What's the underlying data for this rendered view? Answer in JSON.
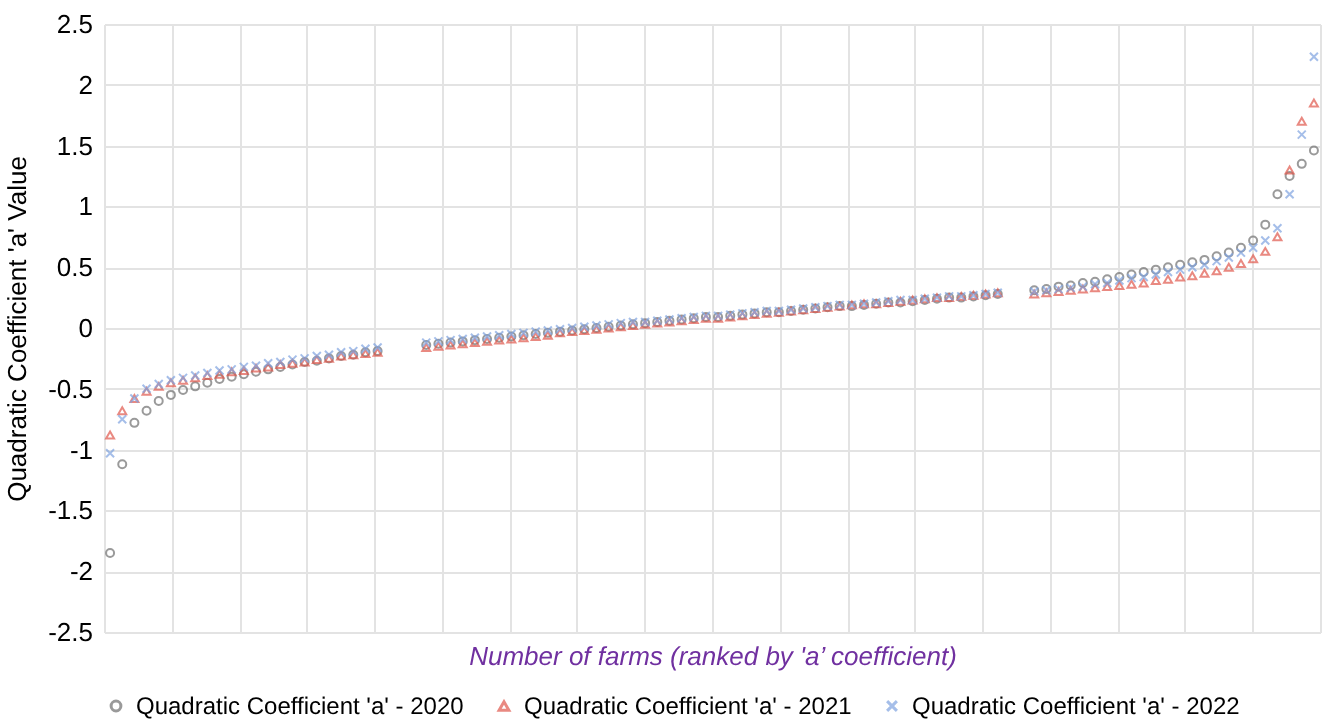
{
  "chart_data": {
    "type": "scatter",
    "xlabel": "Number of farms (ranked by 'a’ coefficient)",
    "ylabel": "Quadratic Coefficient 'a' Value",
    "categories": [
      null,
      null,
      null,
      null,
      null,
      null,
      null,
      null,
      null,
      null,
      null,
      null,
      null,
      null,
      null,
      null,
      null,
      null,
      null,
      null,
      null,
      null,
      null,
      null,
      null,
      null,
      null,
      null,
      null,
      null,
      null,
      null,
      null,
      null,
      null,
      null,
      null,
      null,
      null,
      null,
      null,
      null,
      null,
      null,
      null,
      null,
      null,
      null,
      null,
      null,
      null,
      null,
      null,
      null,
      null,
      null,
      null,
      null,
      null,
      null,
      null,
      null,
      null,
      null,
      null,
      null,
      null,
      null,
      null,
      null,
      null,
      null,
      null,
      null,
      null,
      null,
      null,
      null,
      null,
      null,
      null,
      null,
      null,
      null,
      null,
      null,
      null,
      null,
      null,
      null,
      null,
      null,
      null,
      null,
      null,
      null,
      null,
      null,
      null,
      null
    ],
    "series": [
      {
        "name": "Quadratic Coefficient 'a' - 2020",
        "color": "#707070",
        "marker": "circle",
        "values": [
          -1.85,
          -1.12,
          -0.78,
          -0.68,
          -0.6,
          -0.55,
          -0.51,
          -0.48,
          -0.45,
          -0.42,
          -0.4,
          -0.38,
          -0.36,
          -0.34,
          -0.32,
          -0.3,
          -0.28,
          -0.27,
          -0.25,
          -0.23,
          -0.22,
          -0.2,
          -0.19,
          null,
          null,
          null,
          -0.14,
          -0.13,
          -0.12,
          -0.11,
          -0.1,
          -0.09,
          -0.08,
          -0.07,
          -0.06,
          -0.05,
          -0.04,
          -0.03,
          -0.02,
          -0.01,
          0,
          0.01,
          0.02,
          0.03,
          0.04,
          0.05,
          0.06,
          0.07,
          0.08,
          0.09,
          0.09,
          0.1,
          0.11,
          0.12,
          0.13,
          0.13,
          0.14,
          0.15,
          0.16,
          0.17,
          0.18,
          0.18,
          0.19,
          0.2,
          0.21,
          0.21,
          0.22,
          0.23,
          0.24,
          0.25,
          0.25,
          0.26,
          0.27,
          0.28,
          null,
          null,
          0.31,
          0.32,
          0.34,
          0.35,
          0.37,
          0.38,
          0.4,
          0.42,
          0.44,
          0.46,
          0.48,
          0.5,
          0.52,
          0.54,
          0.56,
          0.59,
          0.62,
          0.66,
          0.72,
          0.85,
          1.1,
          1.25,
          1.35,
          1.46
        ]
      },
      {
        "name": "Quadratic Coefficient 'a' - 2021",
        "color": "#e0584c",
        "marker": "triangle",
        "values": [
          -0.88,
          -0.68,
          -0.58,
          -0.52,
          -0.48,
          -0.45,
          -0.43,
          -0.41,
          -0.39,
          -0.38,
          -0.36,
          -0.35,
          -0.33,
          -0.32,
          -0.3,
          -0.29,
          -0.28,
          -0.26,
          -0.25,
          -0.23,
          -0.22,
          -0.21,
          -0.2,
          null,
          null,
          null,
          -0.16,
          -0.15,
          -0.14,
          -0.13,
          -0.12,
          -0.11,
          -0.1,
          -0.09,
          -0.08,
          -0.07,
          -0.06,
          -0.04,
          -0.03,
          -0.02,
          -0.01,
          0,
          0.01,
          0.02,
          0.03,
          0.04,
          0.05,
          0.06,
          0.07,
          0.08,
          0.08,
          0.09,
          0.1,
          0.11,
          0.12,
          0.13,
          0.14,
          0.15,
          0.16,
          0.17,
          0.18,
          0.19,
          0.2,
          0.2,
          0.21,
          0.22,
          0.23,
          0.24,
          0.25,
          0.25,
          0.26,
          0.27,
          0.28,
          0.29,
          null,
          null,
          0.28,
          0.29,
          0.3,
          0.31,
          0.32,
          0.33,
          0.34,
          0.35,
          0.36,
          0.37,
          0.39,
          0.4,
          0.42,
          0.43,
          0.45,
          0.47,
          0.5,
          0.53,
          0.57,
          0.63,
          0.75,
          1.3,
          1.7,
          1.85
        ]
      },
      {
        "name": "Quadratic Coefficient 'a' - 2022",
        "color": "#7fa3e0",
        "marker": "cross",
        "values": [
          -1.03,
          -0.75,
          -0.58,
          -0.5,
          -0.46,
          -0.43,
          -0.41,
          -0.39,
          -0.37,
          -0.35,
          -0.34,
          -0.32,
          -0.31,
          -0.29,
          -0.28,
          -0.26,
          -0.25,
          -0.23,
          -0.22,
          -0.2,
          -0.19,
          -0.17,
          -0.16,
          null,
          null,
          null,
          -0.12,
          -0.11,
          -0.1,
          -0.09,
          -0.08,
          -0.07,
          -0.06,
          -0.05,
          -0.04,
          -0.03,
          -0.02,
          -0.01,
          0,
          0.01,
          0.02,
          0.03,
          0.04,
          0.05,
          0.05,
          0.06,
          0.07,
          0.08,
          0.09,
          0.1,
          0.1,
          0.11,
          0.12,
          0.13,
          0.14,
          0.14,
          0.15,
          0.16,
          0.17,
          0.18,
          0.19,
          0.19,
          0.2,
          0.21,
          0.22,
          0.23,
          0.23,
          0.24,
          0.25,
          0.26,
          0.26,
          0.27,
          0.28,
          0.29,
          null,
          null,
          0.3,
          0.31,
          0.32,
          0.33,
          0.34,
          0.36,
          0.37,
          0.39,
          0.41,
          0.42,
          0.44,
          0.46,
          0.48,
          0.5,
          0.52,
          0.55,
          0.58,
          0.62,
          0.66,
          0.72,
          0.82,
          1.1,
          1.59,
          2.23
        ]
      }
    ],
    "ylim": [
      -2.5,
      2.5
    ],
    "yticks": [
      -2.5,
      -2,
      -1.5,
      -1,
      -0.5,
      0,
      0.5,
      1,
      1.5,
      2,
      2.5
    ],
    "grid": true,
    "legend": "bottom"
  }
}
